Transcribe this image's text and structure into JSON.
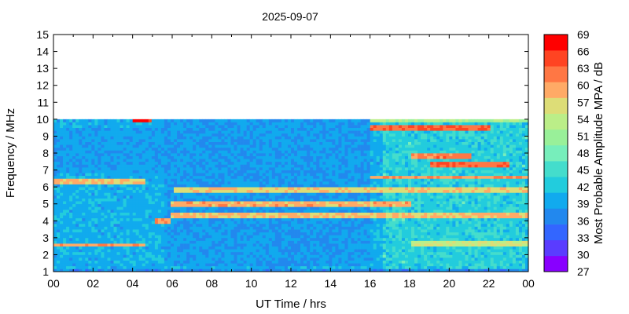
{
  "chart_data": {
    "type": "heatmap",
    "title": "2025-09-07",
    "xlabel": "UT Time / hrs",
    "ylabel": "Frequency / MHz",
    "xlim": [
      0,
      24
    ],
    "ylim": [
      1,
      15
    ],
    "xticks": [
      "00",
      "02",
      "04",
      "06",
      "08",
      "10",
      "12",
      "14",
      "16",
      "18",
      "20",
      "22",
      "00"
    ],
    "yticks": [
      "1",
      "2",
      "3",
      "4",
      "5",
      "6",
      "7",
      "8",
      "9",
      "10",
      "11",
      "12",
      "13",
      "14",
      "15"
    ],
    "colorbar": {
      "label": "Most Probable Amplitude MPA / dB",
      "ticks": [
        "27",
        "30",
        "33",
        "36",
        "39",
        "42",
        "45",
        "48",
        "51",
        "54",
        "57",
        "60",
        "63",
        "66",
        "69"
      ],
      "min": 27,
      "max": 69,
      "colors": [
        "#8800ff",
        "#5a3cff",
        "#3366ff",
        "#2288ee",
        "#11aaee",
        "#22ccdd",
        "#44ddcc",
        "#77eebb",
        "#99f099",
        "#bbee88",
        "#dddd77",
        "#ffaa66",
        "#ff7744",
        "#ff4422",
        "#ff0000"
      ]
    },
    "data_frequency_max": 10,
    "background_level": 40,
    "bands": [
      {
        "freq": 1.0,
        "t_start": 0,
        "t_end": 24,
        "level": 37
      },
      {
        "freq": 2.5,
        "t_start": 0,
        "t_end": 4.5,
        "level": 60
      },
      {
        "freq": 2.6,
        "t_start": 18,
        "t_end": 24,
        "level": 55
      },
      {
        "freq": 3.9,
        "t_start": 5.0,
        "t_end": 5.8,
        "level": 60
      },
      {
        "freq": 4.3,
        "t_start": 5.8,
        "t_end": 24,
        "level": 58
      },
      {
        "freq": 4.9,
        "t_start": 5.8,
        "t_end": 18,
        "level": 59
      },
      {
        "freq": 5.8,
        "t_start": 6.0,
        "t_end": 24,
        "level": 57
      },
      {
        "freq": 6.3,
        "t_start": 0,
        "t_end": 4.5,
        "level": 58
      },
      {
        "freq": 6.5,
        "t_start": 16,
        "t_end": 24,
        "level": 60
      },
      {
        "freq": 7.3,
        "t_start": 19,
        "t_end": 23,
        "level": 63
      },
      {
        "freq": 7.8,
        "t_start": 18,
        "t_end": 21,
        "level": 62
      },
      {
        "freq": 9.4,
        "t_start": 16,
        "t_end": 22,
        "level": 63
      },
      {
        "freq": 9.9,
        "t_start": 4.0,
        "t_end": 4.8,
        "level": 66
      },
      {
        "freq": 9.9,
        "t_start": 16,
        "t_end": 24,
        "level": 52
      }
    ]
  }
}
